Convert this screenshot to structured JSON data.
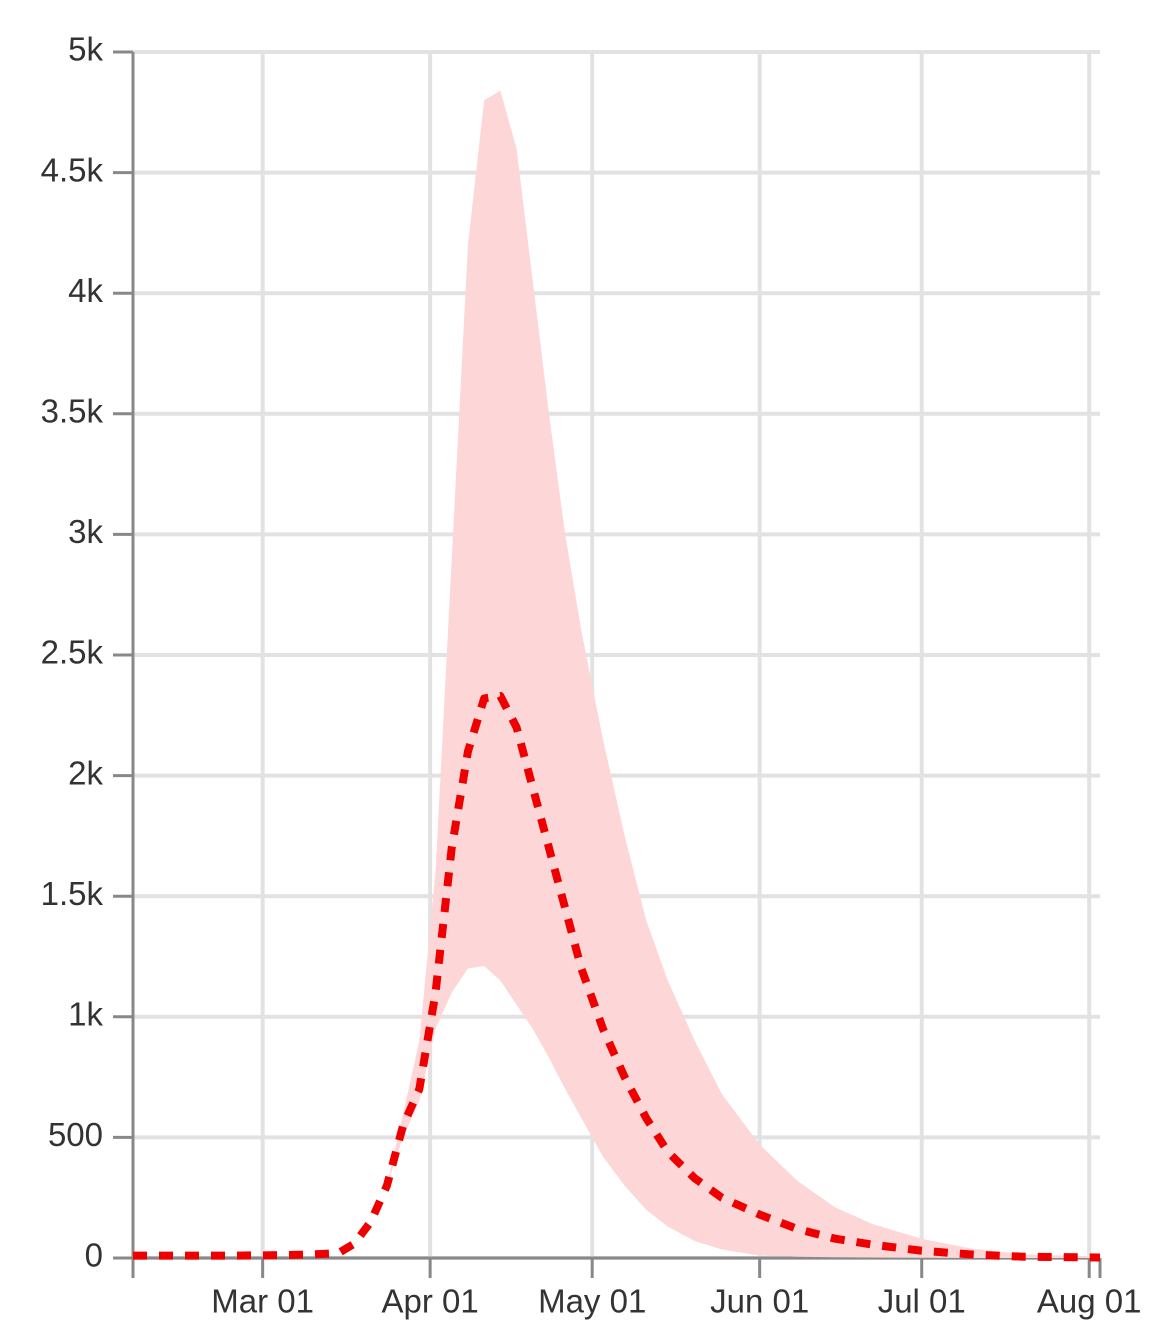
{
  "chart_data": {
    "type": "line",
    "x": [
      "Feb 06",
      "Feb 15",
      "Feb 25",
      "Mar 05",
      "Mar 10",
      "Mar 15",
      "Mar 18",
      "Mar 21",
      "Mar 24",
      "Mar 27",
      "Mar 30",
      "Apr 02",
      "Apr 05",
      "Apr 08",
      "Apr 11",
      "Apr 14",
      "Apr 17",
      "Apr 20",
      "Apr 23",
      "Apr 26",
      "Apr 29",
      "May 03",
      "May 07",
      "May 11",
      "May 15",
      "May 20",
      "May 25",
      "Jun 01",
      "Jun 08",
      "Jun 15",
      "Jun 22",
      "Jul 01",
      "Jul 10",
      "Jul 20",
      "Aug 03"
    ],
    "series": [
      {
        "color": "#ee0000",
        "dashed": true,
        "values": [
          10,
          10,
          10,
          12,
          15,
          20,
          60,
          150,
          300,
          550,
          700,
          1100,
          1700,
          2100,
          2320,
          2330,
          2200,
          1950,
          1700,
          1450,
          1200,
          950,
          750,
          580,
          440,
          330,
          250,
          180,
          120,
          80,
          55,
          30,
          15,
          5,
          2
        ]
      }
    ],
    "band": {
      "color": "#fdd7d7",
      "upper": [
        10,
        10,
        10,
        12,
        15,
        20,
        60,
        150,
        300,
        600,
        900,
        1600,
        2900,
        4200,
        4800,
        4840,
        4600,
        4050,
        3500,
        3000,
        2600,
        2150,
        1750,
        1400,
        1150,
        900,
        680,
        470,
        320,
        210,
        140,
        80,
        40,
        15,
        5
      ],
      "lower": [
        10,
        10,
        10,
        12,
        15,
        20,
        60,
        150,
        300,
        500,
        650,
        950,
        1100,
        1200,
        1210,
        1150,
        1050,
        950,
        830,
        700,
        580,
        420,
        300,
        200,
        130,
        70,
        35,
        10,
        5,
        3,
        2,
        1,
        0,
        0,
        0
      ]
    },
    "xlim": [
      "Feb 06",
      "Aug 03"
    ],
    "xticks": [
      "Mar 01",
      "Apr 01",
      "May 01",
      "Jun 01",
      "Jul 01",
      "Aug 01"
    ],
    "ylim": [
      0,
      5000
    ],
    "yticks": [
      0,
      500,
      {
        "value": 1000,
        "label": "1k"
      },
      {
        "value": 1500,
        "label": "1.5k"
      },
      {
        "value": 2000,
        "label": "2k"
      },
      {
        "value": 2500,
        "label": "2.5k"
      },
      {
        "value": 3000,
        "label": "3k"
      },
      {
        "value": 3500,
        "label": "3.5k"
      },
      {
        "value": 4000,
        "label": "4k"
      },
      {
        "value": 4500,
        "label": "4.5k"
      },
      {
        "value": 5000,
        "label": "5k"
      }
    ],
    "grid": true
  }
}
